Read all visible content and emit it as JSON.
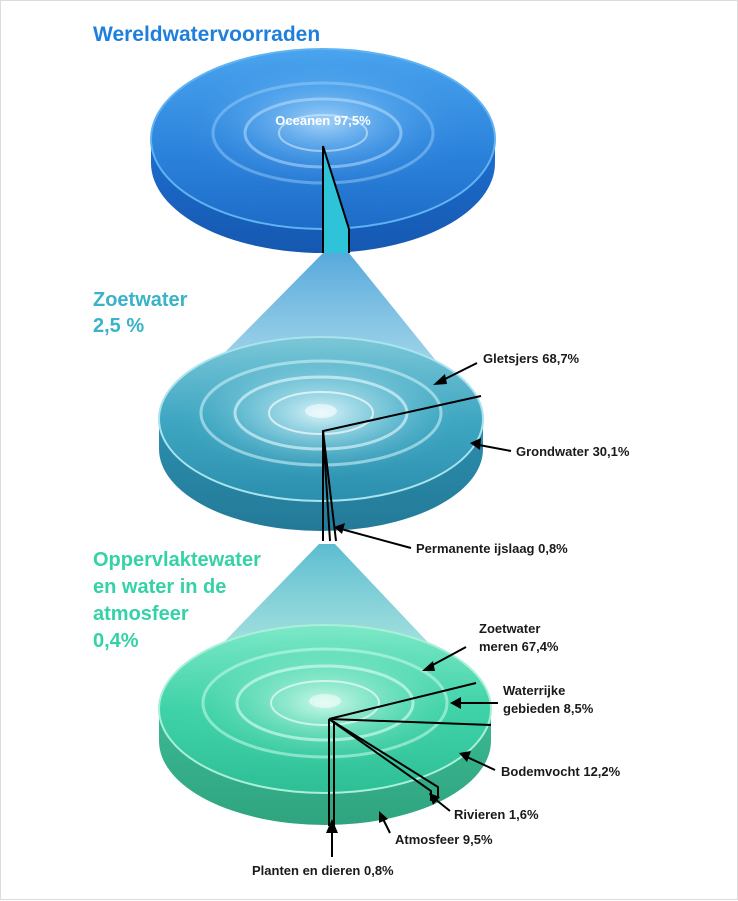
{
  "titles": {
    "world": "Wereldwatervoorraden",
    "fresh_line1": "Zoetwater",
    "fresh_line2": "2,5 %",
    "surface_line1": "Oppervlaktewater",
    "surface_line2": "en water in de",
    "surface_line3": "atmosfeer",
    "surface_line4": "0,4%"
  },
  "labels": {
    "oceans": "Oceanen 97,5%",
    "glaciers": "Gletsjers 68,7%",
    "groundwater": "Grondwater 30,1%",
    "permafrost": "Permanente ijslaag 0,8%",
    "lakes_line1": "Zoetwater",
    "lakes_line2": "meren 67,4%",
    "wetlands_line1": "Waterrijke",
    "wetlands_line2": "gebieden 8,5%",
    "soil_moisture": "Bodemvocht 12,2%",
    "rivers": "Rivieren 1,6%",
    "atmosphere": "Atmosfeer 9,5%",
    "plants_animals": "Planten en dieren 0,8%"
  },
  "colors": {
    "world_disc": "#2e86d8",
    "fresh_disc": "#3aa8c4",
    "surface_disc": "#3fd0a6",
    "cone": "#6cc3d9"
  }
}
